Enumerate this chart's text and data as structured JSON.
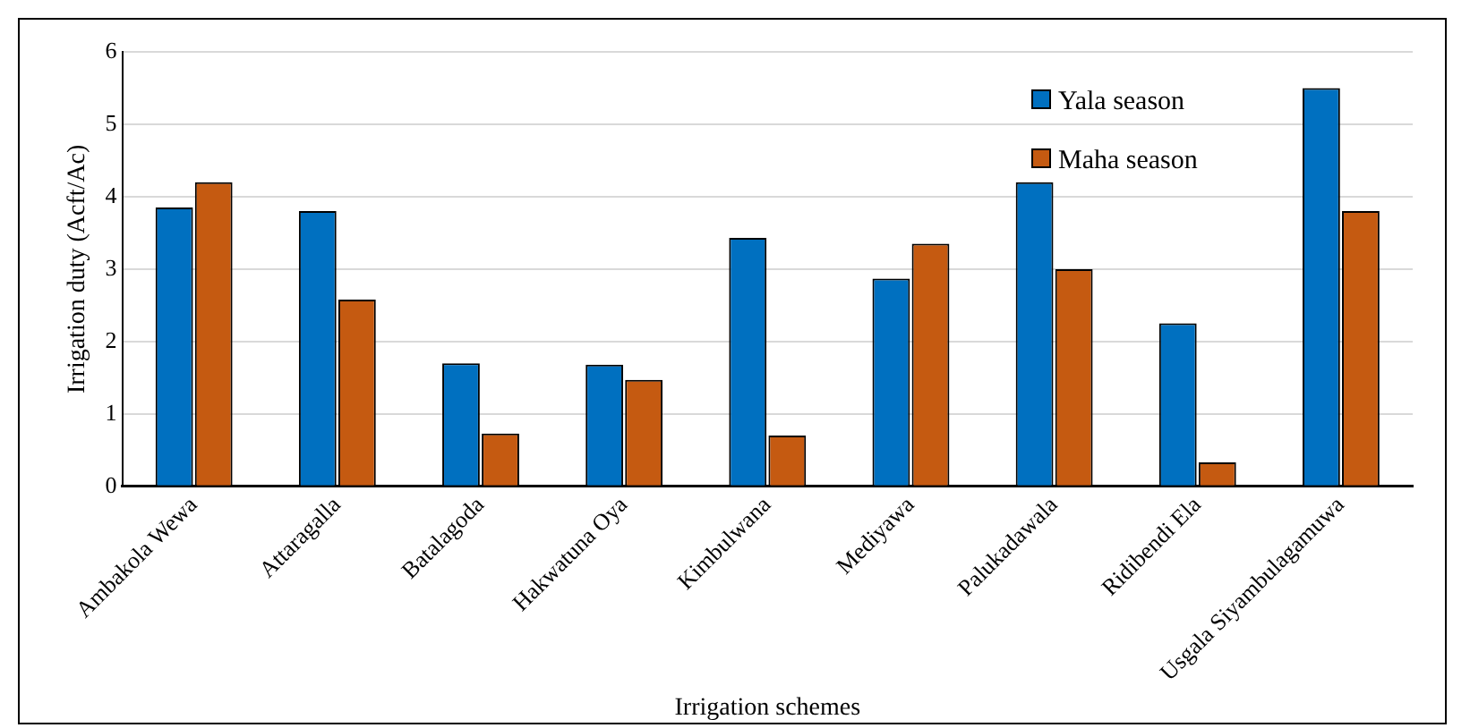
{
  "chart_data": {
    "type": "bar",
    "xlabel": "Irrigation schemes",
    "ylabel": "Irrigation duty (Acft/Ac)",
    "categories": [
      "Ambakola Wewa",
      "Attaragalla",
      "Batalagoda",
      "Hakwatuna Oya",
      "Kimbulwana",
      "Mediyawa",
      "Palukadawala",
      "Ridibendi Ela",
      "Usgala Siyambulagamuwa"
    ],
    "series": [
      {
        "name": "Yala season",
        "color": "#0070c0",
        "values": [
          3.85,
          3.8,
          1.7,
          1.68,
          3.43,
          2.87,
          4.2,
          2.25,
          5.5
        ]
      },
      {
        "name": "Maha season",
        "color": "#c55a11",
        "values": [
          4.2,
          2.58,
          0.73,
          1.47,
          0.7,
          3.35,
          3.0,
          0.33,
          3.8
        ]
      }
    ],
    "ylim": [
      0,
      6
    ],
    "yticks": [
      0,
      1,
      2,
      3,
      4,
      5,
      6
    ],
    "grid": "y",
    "legend": "top right"
  }
}
